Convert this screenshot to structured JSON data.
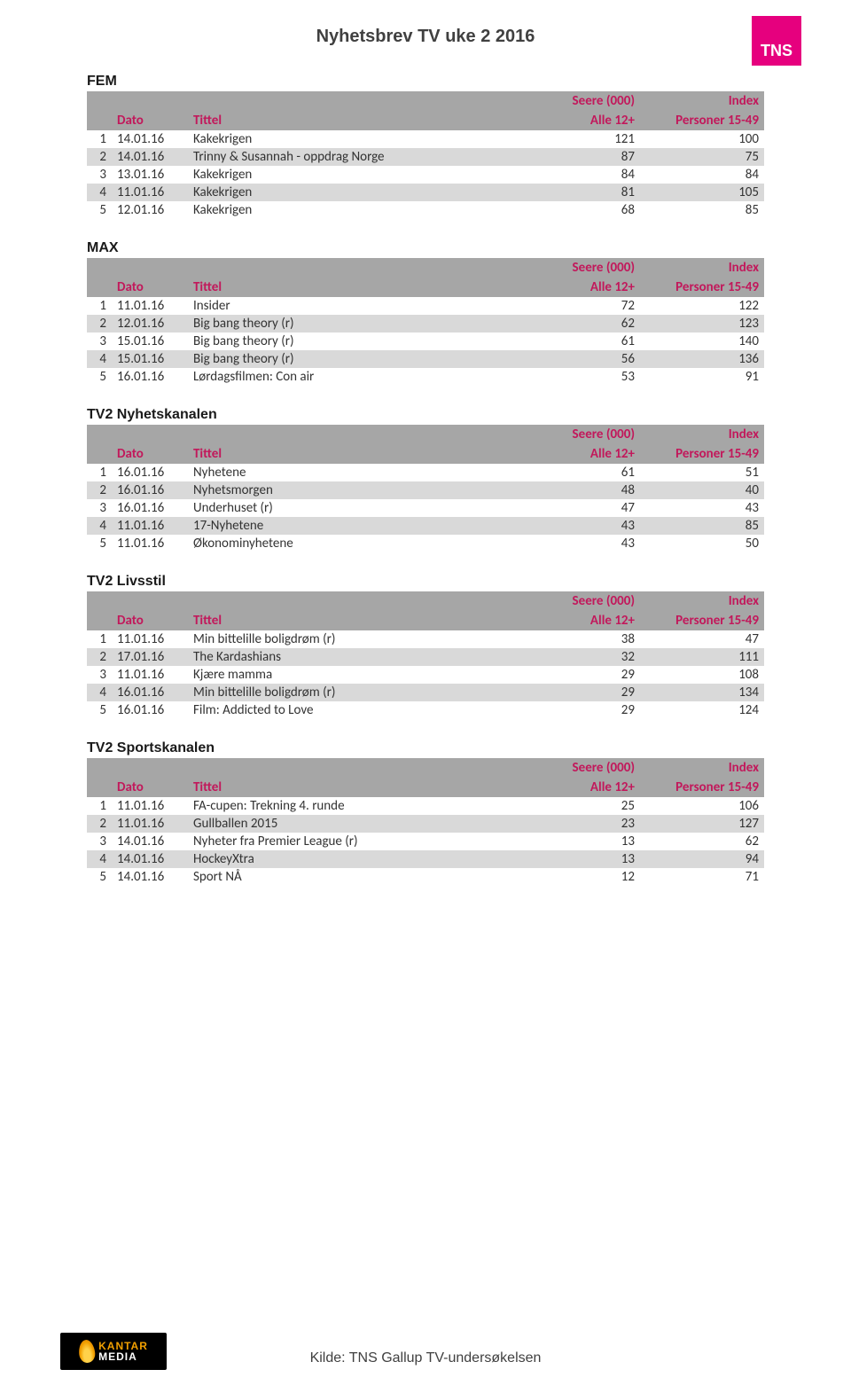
{
  "page_title": "Nyhetsbrev TV uke 2 2016",
  "tns_label": "TNS",
  "kilde": "Kilde: TNS Gallup TV-undersøkelsen",
  "kantar": {
    "line1": "KANTAR",
    "line2": "MEDIA"
  },
  "headers": {
    "dato": "Dato",
    "tittel": "Tittel",
    "seere_top": "Seere (000)",
    "seere_bot": "Alle 12+",
    "index_top": "Index",
    "index_bot": "Personer 15-49"
  },
  "sections": [
    {
      "name": "FEM",
      "rows": [
        {
          "rank": "1",
          "dato": "14.01.16",
          "tittel": "Kakekrigen",
          "v1": "121",
          "v2": "100"
        },
        {
          "rank": "2",
          "dato": "14.01.16",
          "tittel": "Trinny & Susannah - oppdrag Norge",
          "v1": "87",
          "v2": "75"
        },
        {
          "rank": "3",
          "dato": "13.01.16",
          "tittel": "Kakekrigen",
          "v1": "84",
          "v2": "84"
        },
        {
          "rank": "4",
          "dato": "11.01.16",
          "tittel": "Kakekrigen",
          "v1": "81",
          "v2": "105"
        },
        {
          "rank": "5",
          "dato": "12.01.16",
          "tittel": "Kakekrigen",
          "v1": "68",
          "v2": "85"
        }
      ]
    },
    {
      "name": "MAX",
      "rows": [
        {
          "rank": "1",
          "dato": "11.01.16",
          "tittel": "Insider",
          "v1": "72",
          "v2": "122"
        },
        {
          "rank": "2",
          "dato": "12.01.16",
          "tittel": "Big bang theory (r)",
          "v1": "62",
          "v2": "123"
        },
        {
          "rank": "3",
          "dato": "15.01.16",
          "tittel": "Big bang theory (r)",
          "v1": "61",
          "v2": "140"
        },
        {
          "rank": "4",
          "dato": "15.01.16",
          "tittel": "Big bang theory (r)",
          "v1": "56",
          "v2": "136"
        },
        {
          "rank": "5",
          "dato": "16.01.16",
          "tittel": "Lørdagsfilmen: Con air",
          "v1": "53",
          "v2": "91"
        }
      ]
    },
    {
      "name": "TV2 Nyhetskanalen",
      "rows": [
        {
          "rank": "1",
          "dato": "16.01.16",
          "tittel": "Nyhetene",
          "v1": "61",
          "v2": "51"
        },
        {
          "rank": "2",
          "dato": "16.01.16",
          "tittel": "Nyhetsmorgen",
          "v1": "48",
          "v2": "40"
        },
        {
          "rank": "3",
          "dato": "16.01.16",
          "tittel": "Underhuset (r)",
          "v1": "47",
          "v2": "43"
        },
        {
          "rank": "4",
          "dato": "11.01.16",
          "tittel": "17-Nyhetene",
          "v1": "43",
          "v2": "85"
        },
        {
          "rank": "5",
          "dato": "11.01.16",
          "tittel": "Økonominyhetene",
          "v1": "43",
          "v2": "50"
        }
      ]
    },
    {
      "name": "TV2 Livsstil",
      "rows": [
        {
          "rank": "1",
          "dato": "11.01.16",
          "tittel": "Min bittelille boligdrøm (r)",
          "v1": "38",
          "v2": "47"
        },
        {
          "rank": "2",
          "dato": "17.01.16",
          "tittel": "The Kardashians",
          "v1": "32",
          "v2": "111"
        },
        {
          "rank": "3",
          "dato": "11.01.16",
          "tittel": "Kjære mamma",
          "v1": "29",
          "v2": "108"
        },
        {
          "rank": "4",
          "dato": "16.01.16",
          "tittel": "Min bittelille boligdrøm (r)",
          "v1": "29",
          "v2": "134"
        },
        {
          "rank": "5",
          "dato": "16.01.16",
          "tittel": "Film: Addicted to Love",
          "v1": "29",
          "v2": "124"
        }
      ]
    },
    {
      "name": "TV2 Sportskanalen",
      "rows": [
        {
          "rank": "1",
          "dato": "11.01.16",
          "tittel": "FA-cupen: Trekning 4. runde",
          "v1": "25",
          "v2": "106"
        },
        {
          "rank": "2",
          "dato": "11.01.16",
          "tittel": "Gullballen 2015",
          "v1": "23",
          "v2": "127"
        },
        {
          "rank": "3",
          "dato": "14.01.16",
          "tittel": "Nyheter fra Premier League (r)",
          "v1": "13",
          "v2": "62"
        },
        {
          "rank": "4",
          "dato": "14.01.16",
          "tittel": "HockeyXtra",
          "v1": "13",
          "v2": "94"
        },
        {
          "rank": "5",
          "dato": "14.01.16",
          "tittel": "Sport NÅ",
          "v1": "12",
          "v2": "71"
        }
      ]
    }
  ]
}
